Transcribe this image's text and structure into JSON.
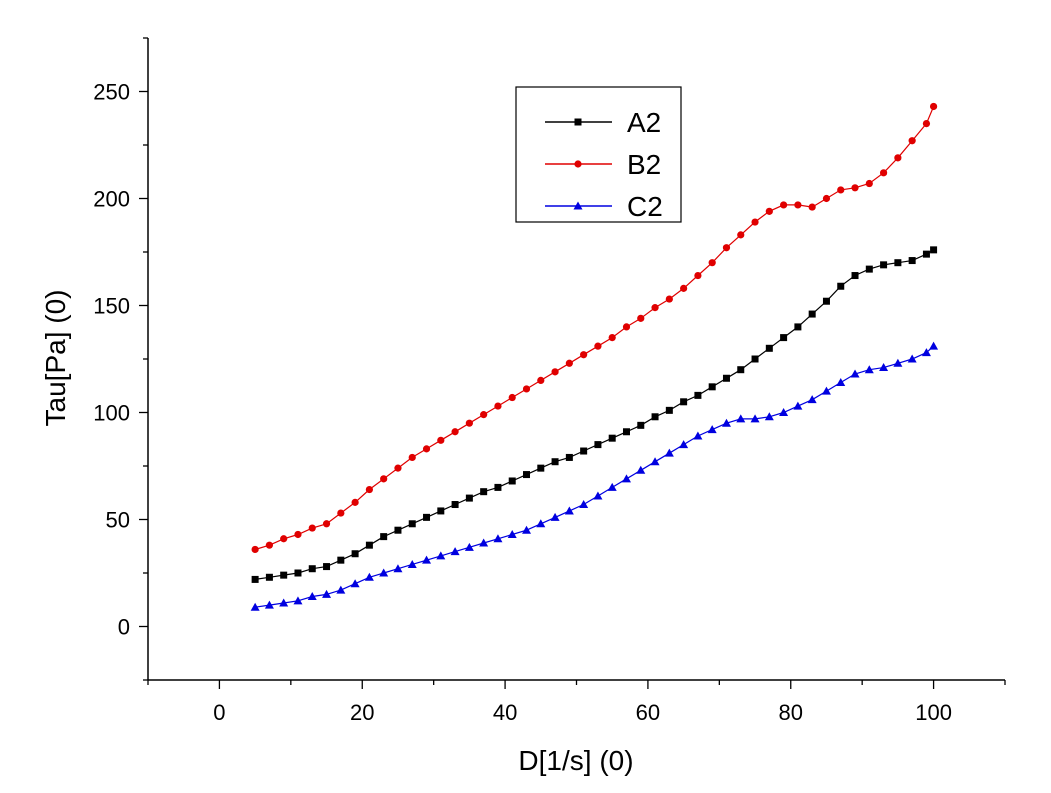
{
  "chart_data": {
    "type": "line",
    "title": "",
    "xlabel": "D[1/s] (0)",
    "ylabel": "Tau[Pa] (0)",
    "xlim": [
      -10,
      110
    ],
    "ylim": [
      -25,
      275
    ],
    "xticks": [
      0,
      20,
      40,
      60,
      80,
      100
    ],
    "yticks": [
      0,
      50,
      100,
      150,
      200,
      250
    ],
    "xtick_labels": [
      "0",
      "20",
      "40",
      "60",
      "80",
      "100"
    ],
    "ytick_labels": [
      "0",
      "50",
      "100",
      "150",
      "200",
      "250"
    ],
    "legend_position": "top-center",
    "series": [
      {
        "name": "A2",
        "color": "#000000",
        "marker": "square",
        "points": [
          [
            5,
            22
          ],
          [
            7,
            23
          ],
          [
            9,
            24
          ],
          [
            11,
            25
          ],
          [
            13,
            27
          ],
          [
            15,
            28
          ],
          [
            17,
            31
          ],
          [
            19,
            34
          ],
          [
            21,
            38
          ],
          [
            23,
            42
          ],
          [
            25,
            45
          ],
          [
            27,
            48
          ],
          [
            29,
            51
          ],
          [
            31,
            54
          ],
          [
            33,
            57
          ],
          [
            35,
            60
          ],
          [
            37,
            63
          ],
          [
            39,
            65
          ],
          [
            41,
            68
          ],
          [
            43,
            71
          ],
          [
            45,
            74
          ],
          [
            47,
            77
          ],
          [
            49,
            79
          ],
          [
            51,
            82
          ],
          [
            53,
            85
          ],
          [
            55,
            88
          ],
          [
            57,
            91
          ],
          [
            59,
            94
          ],
          [
            61,
            98
          ],
          [
            63,
            101
          ],
          [
            65,
            105
          ],
          [
            67,
            108
          ],
          [
            69,
            112
          ],
          [
            71,
            116
          ],
          [
            73,
            120
          ],
          [
            75,
            125
          ],
          [
            77,
            130
          ],
          [
            79,
            135
          ],
          [
            81,
            140
          ],
          [
            83,
            146
          ],
          [
            85,
            152
          ],
          [
            87,
            159
          ],
          [
            89,
            164
          ],
          [
            91,
            167
          ],
          [
            93,
            169
          ],
          [
            95,
            170
          ],
          [
            97,
            171
          ],
          [
            99,
            174
          ],
          [
            100,
            176
          ]
        ]
      },
      {
        "name": "B2",
        "color": "#e00000",
        "marker": "circle",
        "points": [
          [
            5,
            36
          ],
          [
            7,
            38
          ],
          [
            9,
            41
          ],
          [
            11,
            43
          ],
          [
            13,
            46
          ],
          [
            15,
            48
          ],
          [
            17,
            53
          ],
          [
            19,
            58
          ],
          [
            21,
            64
          ],
          [
            23,
            69
          ],
          [
            25,
            74
          ],
          [
            27,
            79
          ],
          [
            29,
            83
          ],
          [
            31,
            87
          ],
          [
            33,
            91
          ],
          [
            35,
            95
          ],
          [
            37,
            99
          ],
          [
            39,
            103
          ],
          [
            41,
            107
          ],
          [
            43,
            111
          ],
          [
            45,
            115
          ],
          [
            47,
            119
          ],
          [
            49,
            123
          ],
          [
            51,
            127
          ],
          [
            53,
            131
          ],
          [
            55,
            135
          ],
          [
            57,
            140
          ],
          [
            59,
            144
          ],
          [
            61,
            149
          ],
          [
            63,
            153
          ],
          [
            65,
            158
          ],
          [
            67,
            164
          ],
          [
            69,
            170
          ],
          [
            71,
            177
          ],
          [
            73,
            183
          ],
          [
            75,
            189
          ],
          [
            77,
            194
          ],
          [
            79,
            197
          ],
          [
            81,
            197
          ],
          [
            83,
            196
          ],
          [
            85,
            200
          ],
          [
            87,
            204
          ],
          [
            89,
            205
          ],
          [
            91,
            207
          ],
          [
            93,
            212
          ],
          [
            95,
            219
          ],
          [
            97,
            227
          ],
          [
            99,
            235
          ],
          [
            100,
            243
          ]
        ]
      },
      {
        "name": "C2",
        "color": "#0000e0",
        "marker": "triangle",
        "points": [
          [
            5,
            9
          ],
          [
            7,
            10
          ],
          [
            9,
            11
          ],
          [
            11,
            12
          ],
          [
            13,
            14
          ],
          [
            15,
            15
          ],
          [
            17,
            17
          ],
          [
            19,
            20
          ],
          [
            21,
            23
          ],
          [
            23,
            25
          ],
          [
            25,
            27
          ],
          [
            27,
            29
          ],
          [
            29,
            31
          ],
          [
            31,
            33
          ],
          [
            33,
            35
          ],
          [
            35,
            37
          ],
          [
            37,
            39
          ],
          [
            39,
            41
          ],
          [
            41,
            43
          ],
          [
            43,
            45
          ],
          [
            45,
            48
          ],
          [
            47,
            51
          ],
          [
            49,
            54
          ],
          [
            51,
            57
          ],
          [
            53,
            61
          ],
          [
            55,
            65
          ],
          [
            57,
            69
          ],
          [
            59,
            73
          ],
          [
            61,
            77
          ],
          [
            63,
            81
          ],
          [
            65,
            85
          ],
          [
            67,
            89
          ],
          [
            69,
            92
          ],
          [
            71,
            95
          ],
          [
            73,
            97
          ],
          [
            75,
            97
          ],
          [
            77,
            98
          ],
          [
            79,
            100
          ],
          [
            81,
            103
          ],
          [
            83,
            106
          ],
          [
            85,
            110
          ],
          [
            87,
            114
          ],
          [
            89,
            118
          ],
          [
            91,
            120
          ],
          [
            93,
            121
          ],
          [
            95,
            123
          ],
          [
            97,
            125
          ],
          [
            99,
            128
          ],
          [
            100,
            131
          ]
        ]
      }
    ]
  }
}
